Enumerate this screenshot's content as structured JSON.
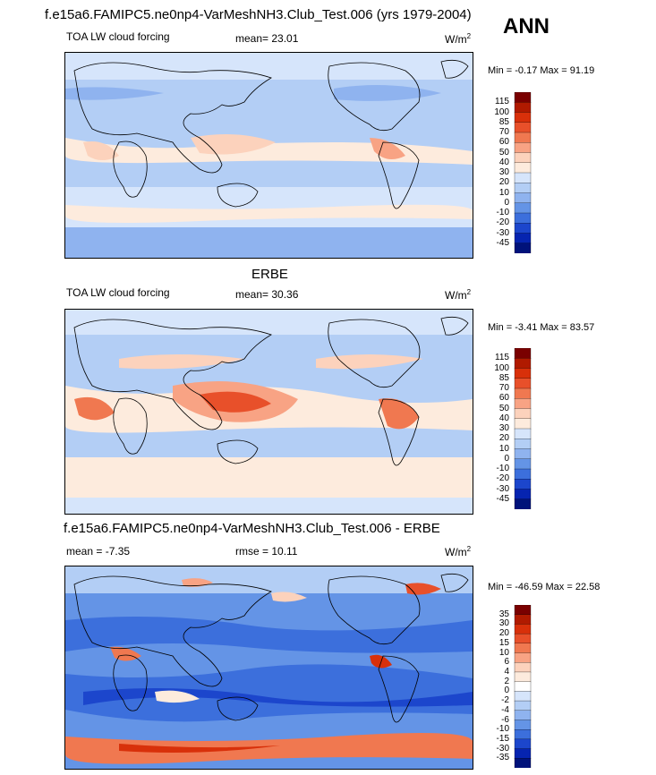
{
  "season": "ANN",
  "panels": [
    {
      "id": "model",
      "title": "f.e15a6.FAMIPC5.ne0np4-VarMeshNH3.Club_Test.006 (yrs 1979-2004)",
      "variable": "TOA LW cloud forcing",
      "left_stat_label": "",
      "center_stat": "mean=  23.01",
      "units": "W/m",
      "units_sup": "2",
      "min_max": "Min =  -0.17 Max =  91.19",
      "colorbar": {
        "ticks": [
          "115",
          "100",
          "85",
          "70",
          "60",
          "50",
          "40",
          "30",
          "20",
          "10",
          "0",
          "-10",
          "-20",
          "-30",
          "-45"
        ],
        "colors": [
          "#7a0000",
          "#b01a00",
          "#d8300a",
          "#e8502a",
          "#f07850",
          "#f8a384",
          "#fcd2bc",
          "#fdebdd",
          "#d6e5fb",
          "#b3cef5",
          "#8fb3ef",
          "#6494e6",
          "#3c6fdc",
          "#1c46cc",
          "#0624b0",
          "#00127a"
        ]
      }
    },
    {
      "id": "obs",
      "title": "ERBE",
      "variable": "TOA LW cloud forcing",
      "left_stat_label": "",
      "center_stat": "mean=  30.36",
      "units": "W/m",
      "units_sup": "2",
      "min_max": "Min =  -3.41 Max =  83.57",
      "colorbar": {
        "ticks": [
          "115",
          "100",
          "85",
          "70",
          "60",
          "50",
          "40",
          "30",
          "20",
          "10",
          "0",
          "-10",
          "-20",
          "-30",
          "-45"
        ],
        "colors": [
          "#7a0000",
          "#b01a00",
          "#d8300a",
          "#e8502a",
          "#f07850",
          "#f8a384",
          "#fcd2bc",
          "#fdebdd",
          "#d6e5fb",
          "#b3cef5",
          "#8fb3ef",
          "#6494e6",
          "#3c6fdc",
          "#1c46cc",
          "#0624b0",
          "#00127a"
        ]
      }
    },
    {
      "id": "diff",
      "title": "f.e15a6.FAMIPC5.ne0np4-VarMeshNH3.Club_Test.006 - ERBE",
      "variable": "",
      "left_stat_label": "mean =  -7.35",
      "center_stat": "rmse =  10.11",
      "units": "W/m",
      "units_sup": "2",
      "min_max": "Min = -46.59 Max =  22.58",
      "colorbar": {
        "ticks": [
          "35",
          "30",
          "20",
          "15",
          "10",
          "6",
          "4",
          "2",
          "0",
          "-2",
          "-4",
          "-6",
          "-10",
          "-15",
          "-30",
          "-35"
        ],
        "colors": [
          "#7a0000",
          "#b01a00",
          "#d8300a",
          "#e8502a",
          "#f07850",
          "#f8a384",
          "#fcd2bc",
          "#fdebdd",
          "#ffffff",
          "#d6e5fb",
          "#b3cef5",
          "#8fb3ef",
          "#6494e6",
          "#3c6fdc",
          "#1c46cc",
          "#0624b0",
          "#00127a"
        ]
      }
    }
  ],
  "chart_data": [
    {
      "type": "heatmap",
      "title": "f.e15a6.FAMIPC5.ne0np4-VarMeshNH3.Club_Test.006 (yrs 1979-2004)",
      "subtitle": "TOA LW cloud forcing",
      "units": "W/m2",
      "mean": 23.01,
      "min": -0.17,
      "max": 91.19,
      "contour_levels": [
        -45,
        -30,
        -20,
        -10,
        0,
        10,
        20,
        30,
        40,
        50,
        60,
        70,
        85,
        100,
        115
      ]
    },
    {
      "type": "heatmap",
      "title": "ERBE",
      "subtitle": "TOA LW cloud forcing",
      "units": "W/m2",
      "mean": 30.36,
      "min": -3.41,
      "max": 83.57,
      "contour_levels": [
        -45,
        -30,
        -20,
        -10,
        0,
        10,
        20,
        30,
        40,
        50,
        60,
        70,
        85,
        100,
        115
      ]
    },
    {
      "type": "heatmap",
      "title": "f.e15a6.FAMIPC5.ne0np4-VarMeshNH3.Club_Test.006 - ERBE",
      "units": "W/m2",
      "mean": -7.35,
      "rmse": 10.11,
      "min": -46.59,
      "max": 22.58,
      "contour_levels": [
        -35,
        -30,
        -15,
        -10,
        -6,
        -4,
        -2,
        0,
        2,
        4,
        6,
        10,
        15,
        20,
        30,
        35
      ]
    }
  ]
}
